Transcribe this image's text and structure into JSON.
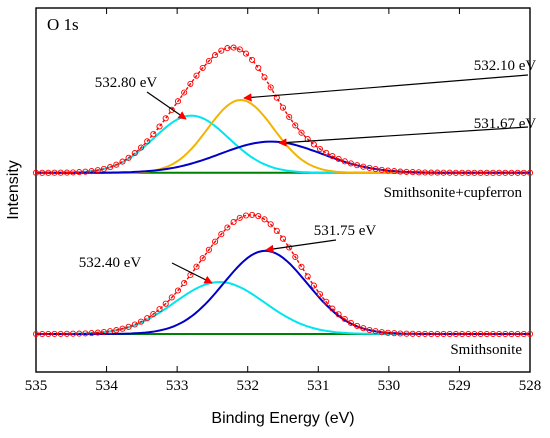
{
  "chart_data": {
    "type": "line",
    "panel_label": "O 1s",
    "xlabel": "Binding Energy (eV)",
    "ylabel": "Intensity",
    "xlim": [
      535,
      528
    ],
    "x_reversed": true,
    "x_ticks": [
      535,
      534,
      533,
      532,
      531,
      530,
      529,
      528
    ],
    "y_ticks_shown": false,
    "grid": false,
    "colors": {
      "raw": "#ff0000",
      "envelope": "#ff0000",
      "baseline": "#008000",
      "peak_cyan": "#00e5ee",
      "peak_orange": "#f2b400",
      "peak_blue": "#0000c8",
      "arrow": "#ff0000"
    },
    "plots": [
      {
        "sample": "Smithsonite+cupferron",
        "offset": 1.55,
        "baseline": 0.0,
        "peaks": [
          {
            "center": 532.8,
            "amplitude": 0.55,
            "fwhm": 1.25,
            "color": "#00e5ee",
            "label": "532.80 eV"
          },
          {
            "center": 532.1,
            "amplitude": 0.7,
            "fwhm": 1.1,
            "color": "#f2b400",
            "label": "532.10 eV"
          },
          {
            "center": 531.67,
            "amplitude": 0.3,
            "fwhm": 1.7,
            "color": "#0000c8",
            "label": "531.67 eV"
          }
        ]
      },
      {
        "sample": "Smithsonite",
        "offset": 0.0,
        "baseline": 0.0,
        "peaks": [
          {
            "center": 532.4,
            "amplitude": 0.5,
            "fwhm": 1.5,
            "color": "#00e5ee",
            "label": "532.40 eV"
          },
          {
            "center": 531.75,
            "amplitude": 0.8,
            "fwhm": 1.4,
            "color": "#0000c8",
            "label": "531.75 eV"
          }
        ]
      }
    ]
  }
}
